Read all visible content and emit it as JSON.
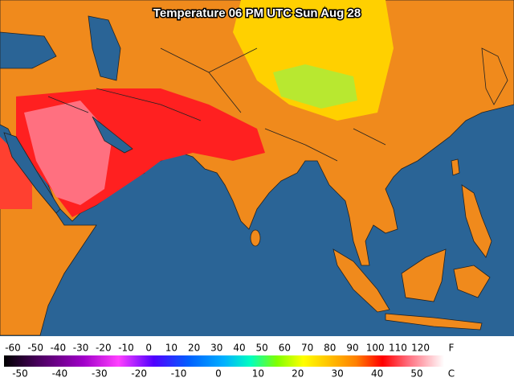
{
  "title": "Temperature 06 PM UTC Sun Aug 28",
  "legend": {
    "fahrenheit_unit": "F",
    "fahrenheit_labels": [
      -60,
      -50,
      -40,
      -30,
      -20,
      -10,
      0,
      10,
      20,
      30,
      40,
      50,
      60,
      70,
      80,
      90,
      100,
      110,
      120
    ],
    "celsius_unit": "C",
    "celsius_labels": [
      -50,
      -40,
      -30,
      -20,
      -10,
      0,
      10,
      20,
      30,
      40,
      50
    ]
  }
}
